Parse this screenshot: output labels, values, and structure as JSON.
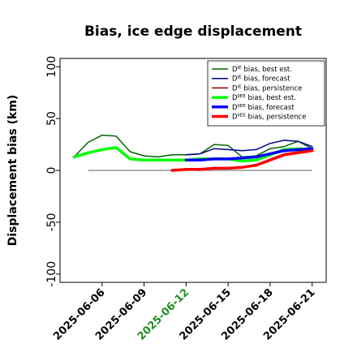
{
  "chart_data": {
    "type": "line",
    "title": "Bias, ice edge displacement",
    "xlabel": "",
    "ylabel": "Displacement bias (km)",
    "ylim": [
      -108,
      108
    ],
    "xlim": [
      "2025-06-03",
      "2025-06-22"
    ],
    "y_ticks": [
      -100,
      -50,
      0,
      50,
      100
    ],
    "x_ticks": [
      {
        "date": "2025-06-06",
        "label": "2025-06-06",
        "color": "#000000"
      },
      {
        "date": "2025-06-09",
        "label": "2025-06-09",
        "color": "#000000"
      },
      {
        "date": "2025-06-12",
        "label": "2025-06-12",
        "color": "#228b22"
      },
      {
        "date": "2025-06-15",
        "label": "2025-06-15",
        "color": "#000000"
      },
      {
        "date": "2025-06-18",
        "label": "2025-06-18",
        "color": "#000000"
      },
      {
        "date": "2025-06-21",
        "label": "2025-06-21",
        "color": "#000000"
      }
    ],
    "zero_line": true,
    "grid": false,
    "legend_position": "top-right",
    "series": [
      {
        "name": "bias, best est.",
        "legend_sup": "IE",
        "color": "#006400",
        "width": 1.5,
        "x": [
          "2025-06-04",
          "2025-06-05",
          "2025-06-06",
          "2025-06-07",
          "2025-06-08",
          "2025-06-09",
          "2025-06-10",
          "2025-06-11",
          "2025-06-12",
          "2025-06-13",
          "2025-06-14",
          "2025-06-15",
          "2025-06-16",
          "2025-06-17",
          "2025-06-18",
          "2025-06-19",
          "2025-06-20",
          "2025-06-21"
        ],
        "y": [
          13,
          27,
          34,
          33,
          18,
          14,
          13,
          15,
          15,
          16,
          25,
          24,
          13,
          14,
          21,
          23,
          28,
          21
        ]
      },
      {
        "name": "bias, forecast",
        "legend_sup": "IE",
        "color": "#00008b",
        "width": 1.5,
        "x": [
          "2025-06-12",
          "2025-06-13",
          "2025-06-14",
          "2025-06-15",
          "2025-06-16",
          "2025-06-17",
          "2025-06-18",
          "2025-06-19",
          "2025-06-20",
          "2025-06-21"
        ],
        "y": [
          15,
          16,
          21,
          20,
          19,
          20,
          26,
          29,
          28,
          23
        ]
      },
      {
        "name": "bias, persistence",
        "legend_sup": "IE",
        "color": "#8b0000",
        "width": 1.5,
        "x": [
          "2025-06-11",
          "2025-06-12",
          "2025-06-13",
          "2025-06-14",
          "2025-06-15",
          "2025-06-16",
          "2025-06-17",
          "2025-06-18",
          "2025-06-19",
          "2025-06-20",
          "2025-06-21"
        ],
        "y": [
          0,
          1,
          0,
          3,
          2,
          3,
          5,
          11,
          16,
          18,
          20
        ]
      },
      {
        "name": "bias, best est.",
        "legend_sup": "IIEE",
        "color": "#00ff00",
        "width": 3.5,
        "x": [
          "2025-06-04",
          "2025-06-05",
          "2025-06-06",
          "2025-06-07",
          "2025-06-08",
          "2025-06-09",
          "2025-06-10",
          "2025-06-11",
          "2025-06-12",
          "2025-06-13",
          "2025-06-14",
          "2025-06-15",
          "2025-06-16",
          "2025-06-17",
          "2025-06-18",
          "2025-06-19",
          "2025-06-20",
          "2025-06-21"
        ],
        "y": [
          13,
          17,
          20,
          22,
          11,
          10,
          10,
          10,
          10,
          11,
          11,
          11,
          9,
          10,
          15,
          20,
          21,
          20
        ]
      },
      {
        "name": "bias, forecast",
        "legend_sup": "IIEE",
        "color": "#0000ff",
        "width": 3.5,
        "x": [
          "2025-06-12",
          "2025-06-13",
          "2025-06-14",
          "2025-06-15",
          "2025-06-16",
          "2025-06-17",
          "2025-06-18",
          "2025-06-19",
          "2025-06-20",
          "2025-06-21"
        ],
        "y": [
          10,
          10,
          11,
          11,
          12,
          13,
          16,
          19,
          20,
          21
        ]
      },
      {
        "name": "bias, persistence",
        "legend_sup": "IIEE",
        "color": "#ff0000",
        "width": 3.5,
        "x": [
          "2025-06-11",
          "2025-06-12",
          "2025-06-13",
          "2025-06-14",
          "2025-06-15",
          "2025-06-16",
          "2025-06-17",
          "2025-06-18",
          "2025-06-19",
          "2025-06-20",
          "2025-06-21"
        ],
        "y": [
          0,
          1,
          1,
          2,
          2,
          3,
          5,
          10,
          15,
          17,
          19
        ]
      }
    ],
    "legend_prefix": "D",
    "zero_line_color": "#808080"
  }
}
